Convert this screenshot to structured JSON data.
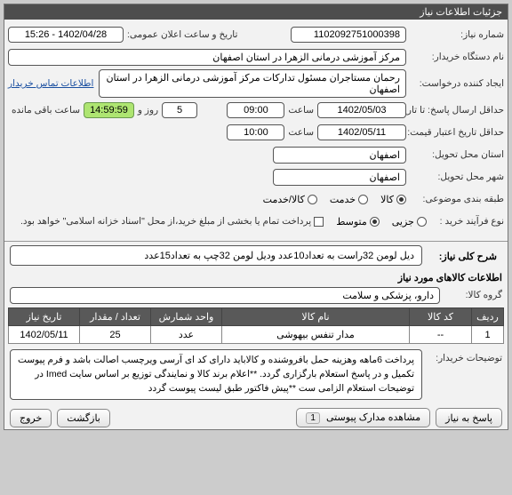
{
  "colors": {
    "page_bg": "#cccccc",
    "panel_bg": "#f2f2f2",
    "header_bg": "#4d4d4d",
    "header_fg": "#ffffff",
    "field_bg": "#ffffff",
    "field_border": "#555555",
    "link": "#1a4fa0",
    "remain_bg": "#aee571",
    "remain_border": "#6a994e",
    "th_bg": "#595959"
  },
  "header": {
    "title": "جزئیات اطلاعات نیاز"
  },
  "form": {
    "need_no_lbl": "شماره نیاز:",
    "need_no": "1102092751000398",
    "announce_lbl": "تاریخ و ساعت اعلان عمومی:",
    "announce_val": "1402/04/28 - 15:26",
    "buyer_lbl": "نام دستگاه خریدار:",
    "buyer_val": "مرکز آموزشی درمانی الزهرا در استان اصفهان",
    "creator_lbl": "ایجاد کننده درخواست:",
    "creator_val": "رحمان مستاجران مسئول تدارکات مرکز آموزشی درمانی الزهرا در استان اصفهان",
    "contact_link": "اطلاعات تماس خریدار",
    "deadline_lbl": "حداقل ارسال پاسخ: تا تاریخ:",
    "deadline_date": "1402/05/03",
    "deadline_time_lbl": "ساعت",
    "deadline_time": "09:00",
    "roz_lbl": "روز و",
    "roz_val": "5",
    "remain_time": "14:59:59",
    "remain_lbl": "ساعت باقی مانده",
    "validity_lbl": "حداقل تاریخ اعتبار قیمت: تا تاریخ:",
    "validity_date": "1402/05/11",
    "validity_time_lbl": "ساعت",
    "validity_time": "10:00",
    "req_city_lbl": "استان محل تحویل:",
    "req_city": "اصفهان",
    "del_city_lbl": "شهر محل تحویل:",
    "del_city": "اصفهان",
    "subject_class_lbl": "طبقه بندی موضوعی:",
    "r_goods": "کالا",
    "r_service": "خدمت",
    "r_both": "کالا/خدمت",
    "buy_process_lbl": "نوع فرآیند خرید :",
    "r_small": "جزیی",
    "r_medium": "متوسط",
    "pay_note": "پرداخت تمام یا بخشی از مبلغ خرید،از محل \"اسناد خزانه اسلامی\" خواهد بود."
  },
  "need": {
    "title_lbl": "شرح کلی نیاز:",
    "title_val": "دیل لومن 32راست به تعداد10عدد ودیل لومن 32چپ به تعداد15عدد",
    "items_header": "اطلاعات کالاهای مورد نیاز",
    "group_lbl": "گروه کالا:",
    "group_val": "دارو، پزشکی و سلامت"
  },
  "table": {
    "columns": [
      "ردیف",
      "کد کالا",
      "نام کالا",
      "واحد شمارش",
      "تعداد / مقدار",
      "تاریخ نیاز"
    ],
    "rows": [
      [
        "1",
        "--",
        "مدار تنفس بیهوشی",
        "عدد",
        "25",
        "1402/05/11"
      ]
    ],
    "col_widths": [
      "36px",
      "70px",
      "auto",
      "80px",
      "80px",
      "80px"
    ]
  },
  "buyer_notes": {
    "lbl": "توضیحات خریدار:",
    "text": "پرداخت 6ماهه وهزینه حمل بافروشنده و کالاباید دارای کد ای آرسی ویرچسب اصالت باشد و فرم پیوست تکمیل و در پاسخ استعلام بارگزاری گردد. **اعلام برند کالا و نمایندگی توزیع بر اساس سایت Imed در توضیحات استعلام الزامی ست **پیش فاکتور طبق لیست پیوست گردد"
  },
  "footer": {
    "respond": "پاسخ به نیاز",
    "attachments": "مشاهده مدارک پیوستی",
    "attach_count": "1",
    "back": "بازگشت",
    "exit": "خروج"
  }
}
